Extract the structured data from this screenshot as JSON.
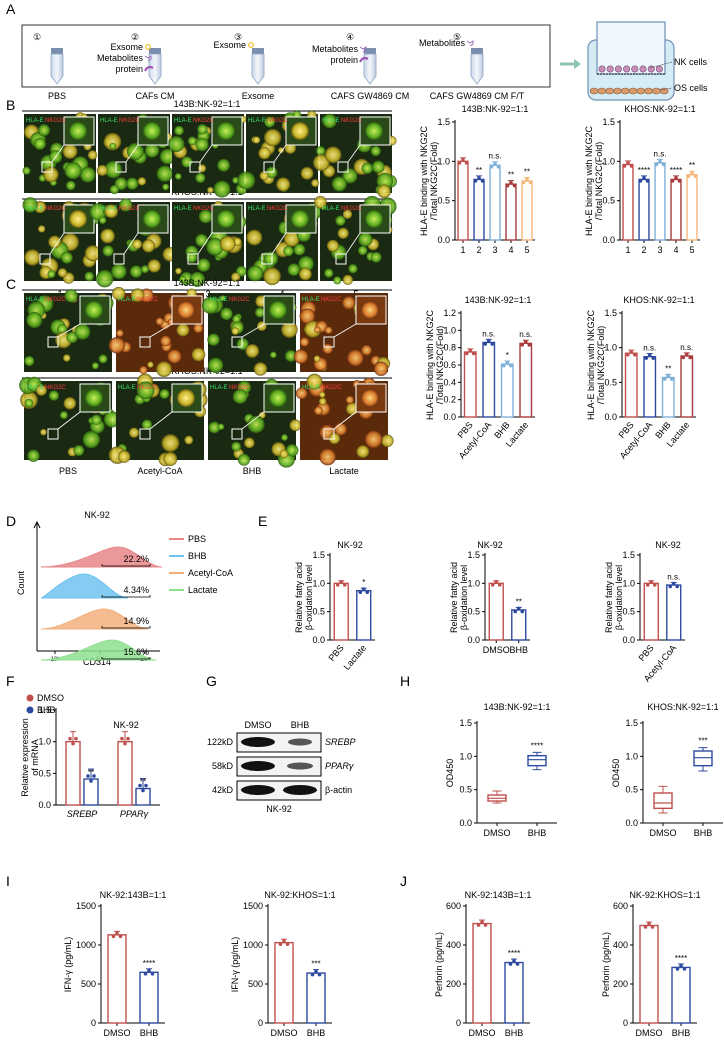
{
  "panels": {
    "A": {
      "letter": "A",
      "groups": [
        {
          "num": "①",
          "label": "PBS",
          "items": []
        },
        {
          "num": "②",
          "label": "CAFs CM",
          "items": [
            "Exsome",
            "Metabolites",
            "protein"
          ]
        },
        {
          "num": "③",
          "label": "Exsome",
          "items": [
            "Exsome"
          ]
        },
        {
          "num": "④",
          "label": "CAFS GW4869 CM",
          "items": [
            "Metabolites",
            "protein"
          ]
        },
        {
          "num": "⑤",
          "label": "CAFS GW4869 CM F/T",
          "items": [
            "Metabolites"
          ]
        }
      ],
      "transwell": {
        "nk": "NK cells",
        "os": "OS cells"
      }
    },
    "B": {
      "letter": "B",
      "row1_title": "143B:NK-92=1:1",
      "row2_title": "KHOS:NK-92=1:1",
      "stain_green": "HLA-E",
      "stain_red": "NKG2C",
      "col_labels": [
        "1",
        "2",
        "3",
        "4",
        "5"
      ]
    },
    "C": {
      "letter": "C",
      "row1_title": "143B:NK-92=1:1",
      "row2_title": "KHOS:NK-92=1:1",
      "stain_green": "HLA-E",
      "stain_red": "NKG2C",
      "col_labels": [
        "PBS",
        "Acetyl-CoA",
        "BHB",
        "Lactate"
      ]
    },
    "D": {
      "letter": "D",
      "title": "NK-92",
      "xlabel": "CD314",
      "ylabel": "Count",
      "ticks": [
        "10³",
        "10⁴",
        "10⁵"
      ],
      "legend": [
        {
          "label": "PBS",
          "color": "#e8868a"
        },
        {
          "label": "BHB",
          "color": "#6fc3ef"
        },
        {
          "label": "Acetyl-CoA",
          "color": "#f2b07c"
        },
        {
          "label": "Lactate",
          "color": "#8ee08e"
        }
      ],
      "percents": [
        "22.2%",
        "4.34%",
        "14.9%",
        "15.6%"
      ]
    },
    "E": {
      "letter": "E"
    },
    "F": {
      "letter": "F"
    },
    "G": {
      "letter": "G",
      "cols": [
        "DMSO",
        "BHB"
      ],
      "kd": [
        "122kD",
        "58kD",
        "42kD"
      ],
      "proteins": [
        "SREBP",
        "PPARγ",
        "β-actin"
      ],
      "footer": "NK-92"
    },
    "H": {
      "letter": "H"
    },
    "I": {
      "letter": "I"
    },
    "J": {
      "letter": "J"
    }
  },
  "chart_data": [
    {
      "id": "B1",
      "type": "bar",
      "title": "143B:NK-92=1:1",
      "ylabel": "HLA-E binding with NKG2C /Total NKG2C(Fold)",
      "categories": [
        "1",
        "2",
        "3",
        "4",
        "5"
      ],
      "values": [
        1.0,
        0.77,
        0.95,
        0.71,
        0.75
      ],
      "sig": [
        "",
        "**",
        "n.s.",
        "**",
        "**"
      ],
      "colors": [
        "#c0504d",
        "#2e4a9e",
        "#7fb0d8",
        "#a83c3c",
        "#f5b87a"
      ],
      "ylim": [
        0,
        1.5
      ],
      "yticks": [
        "0.0",
        "0.5",
        "1.0",
        "1.5"
      ]
    },
    {
      "id": "B2",
      "type": "bar",
      "title": "KHOS:NK-92=1:1",
      "ylabel": "HLA-E binding with NKG2C /Total NKG2C(Fold)",
      "categories": [
        "1",
        "2",
        "3",
        "4",
        "5"
      ],
      "values": [
        0.96,
        0.77,
        0.98,
        0.77,
        0.83
      ],
      "sig": [
        "",
        "****",
        "n.s.",
        "****",
        "**"
      ],
      "colors": [
        "#c0504d",
        "#2e4a9e",
        "#7fb0d8",
        "#a83c3c",
        "#f5b87a"
      ],
      "ylim": [
        0,
        1.5
      ],
      "yticks": [
        "0.0",
        "0.5",
        "1.0",
        "1.5"
      ]
    },
    {
      "id": "C1",
      "type": "bar",
      "title": "143B:NK-92=1:1",
      "ylabel": "HLA-E binding with NKG2C /Total NKG2C(Fold)",
      "categories": [
        "PBS",
        "Acetyl-CoA",
        "BHB",
        "Lactate"
      ],
      "values": [
        0.75,
        0.86,
        0.61,
        0.85
      ],
      "sig": [
        "",
        "n.s.",
        "*",
        "n.s."
      ],
      "colors": [
        "#c0504d",
        "#2e4a9e",
        "#7fb0d8",
        "#a83c3c"
      ],
      "ylim": [
        0,
        1.2
      ],
      "yticks": [
        "0.0",
        "0.2",
        "0.4",
        "0.6",
        "0.8",
        "1.0",
        "1.2"
      ]
    },
    {
      "id": "C2",
      "type": "bar",
      "title": "KHOS:NK-92=1:1",
      "ylabel": "HLA-E binding with NKG2C /Total NKG2C(Fold)",
      "categories": [
        "PBS",
        "Acetyl-CoA",
        "BHB",
        "Lactate"
      ],
      "values": [
        0.92,
        0.87,
        0.57,
        0.88
      ],
      "sig": [
        "",
        "n.s.",
        "**",
        "n.s."
      ],
      "colors": [
        "#c0504d",
        "#2e4a9e",
        "#7fb0d8",
        "#a83c3c"
      ],
      "ylim": [
        0,
        1.5
      ],
      "yticks": [
        "0.0",
        "0.5",
        "1.0",
        "1.5"
      ]
    },
    {
      "id": "E1",
      "type": "bar",
      "title": "NK-92",
      "ylabel": "Relative fatty acid β-oxidation level",
      "categories": [
        "PBS",
        "Lactate"
      ],
      "values": [
        1.0,
        0.87
      ],
      "sig": [
        "",
        "*"
      ],
      "colors": [
        "#c0504d",
        "#2e4a9e"
      ],
      "ylim": [
        0,
        1.5
      ],
      "yticks": [
        "0.0",
        "0.5",
        "1.0",
        "1.5"
      ]
    },
    {
      "id": "E2",
      "type": "bar",
      "title": "NK-92",
      "ylabel": "Relative fatty acid β-oxidation level",
      "categories": [
        "DMSO",
        "BHB"
      ],
      "values": [
        1.0,
        0.53
      ],
      "sig": [
        "",
        "**"
      ],
      "colors": [
        "#c0504d",
        "#2e4a9e"
      ],
      "ylim": [
        0,
        1.5
      ],
      "yticks": [
        "0.0",
        "0.5",
        "1.0",
        "1.5"
      ]
    },
    {
      "id": "E3",
      "type": "bar",
      "title": "NK-92",
      "ylabel": "Relative fatty acid β-oxidation level",
      "categories": [
        "PBS",
        "Acetyl-CoA"
      ],
      "values": [
        1.0,
        0.97
      ],
      "sig": [
        "",
        "n.s."
      ],
      "colors": [
        "#c0504d",
        "#2e4a9e"
      ],
      "ylim": [
        0,
        1.5
      ],
      "yticks": [
        "0.0",
        "0.5",
        "1.0",
        "1.5"
      ]
    },
    {
      "id": "F",
      "type": "bar",
      "title": "NK-92",
      "ylabel": "Relative expression of mRNA",
      "categories": [
        "SREBP",
        "PPARγ"
      ],
      "series": [
        {
          "name": "DMSO",
          "values": [
            1.0,
            1.0
          ],
          "color": "#c0504d"
        },
        {
          "name": "BHB",
          "values": [
            0.41,
            0.26
          ],
          "color": "#2e4a9e"
        }
      ],
      "sig": [
        "**",
        "**"
      ],
      "ylim": [
        0,
        1.5
      ],
      "yticks": [
        "0.0",
        "0.5",
        "1.0",
        "1.5"
      ]
    },
    {
      "id": "H1",
      "type": "box",
      "title": "143B:NK-92=1:1",
      "ylabel": "OD450",
      "categories": [
        "DMSO",
        "BHB"
      ],
      "boxes": [
        {
          "min": 0.3,
          "q1": 0.33,
          "median": 0.37,
          "q3": 0.42,
          "max": 0.48
        },
        {
          "min": 0.8,
          "q1": 0.86,
          "median": 0.95,
          "q3": 1.01,
          "max": 1.06
        }
      ],
      "sig": [
        "",
        "****"
      ],
      "colors": [
        "#c0504d",
        "#2e4a9e"
      ],
      "ylim": [
        0,
        1.5
      ],
      "yticks": [
        "0.0",
        "0.5",
        "1.0",
        "1.5"
      ]
    },
    {
      "id": "H2",
      "type": "box",
      "title": "KHOS:NK-92=1:1",
      "ylabel": "OD450",
      "categories": [
        "DMSO",
        "BHB"
      ],
      "boxes": [
        {
          "min": 0.15,
          "q1": 0.22,
          "median": 0.3,
          "q3": 0.45,
          "max": 0.55
        },
        {
          "min": 0.78,
          "q1": 0.86,
          "median": 0.98,
          "q3": 1.08,
          "max": 1.13
        }
      ],
      "sig": [
        "",
        "***"
      ],
      "colors": [
        "#c0504d",
        "#2e4a9e"
      ],
      "ylim": [
        0,
        1.5
      ],
      "yticks": [
        "0.0",
        "0.5",
        "1.0",
        "1.5"
      ]
    },
    {
      "id": "I1",
      "type": "bar",
      "title": "NK-92:143B=1:1",
      "ylabel": "IFN-γ (pg/mL)",
      "categories": [
        "DMSO",
        "BHB"
      ],
      "values": [
        1130,
        650
      ],
      "sig": [
        "",
        "****"
      ],
      "colors": [
        "#c0504d",
        "#2e4a9e"
      ],
      "ylim": [
        0,
        1500
      ],
      "yticks": [
        "0",
        "500",
        "1000",
        "1500"
      ]
    },
    {
      "id": "I2",
      "type": "bar",
      "title": "NK-92:KHOS=1:1",
      "ylabel": "IFN-γ (pg/mL)",
      "categories": [
        "DMSO",
        "BHB"
      ],
      "values": [
        1030,
        640
      ],
      "sig": [
        "",
        "***"
      ],
      "colors": [
        "#c0504d",
        "#2e4a9e"
      ],
      "ylim": [
        0,
        1500
      ],
      "yticks": [
        "0",
        "500",
        "1000",
        "1500"
      ]
    },
    {
      "id": "J1",
      "type": "bar",
      "title": "NK-92:143B=1:1",
      "ylabel": "Perforin (pg/mL)",
      "categories": [
        "DMSO",
        "BHB"
      ],
      "values": [
        510,
        310
      ],
      "sig": [
        "",
        "****"
      ],
      "colors": [
        "#c0504d",
        "#2e4a9e"
      ],
      "ylim": [
        0,
        600
      ],
      "yticks": [
        "0",
        "200",
        "400",
        "600"
      ]
    },
    {
      "id": "J2",
      "type": "bar",
      "title": "NK-92:KHOS=1:1",
      "ylabel": "Perforin (pg/mL)",
      "categories": [
        "DMSO",
        "BHB"
      ],
      "values": [
        500,
        285
      ],
      "sig": [
        "",
        "****"
      ],
      "colors": [
        "#c0504d",
        "#2e4a9e"
      ],
      "ylim": [
        0,
        600
      ],
      "yticks": [
        "0",
        "200",
        "400",
        "600"
      ]
    }
  ]
}
